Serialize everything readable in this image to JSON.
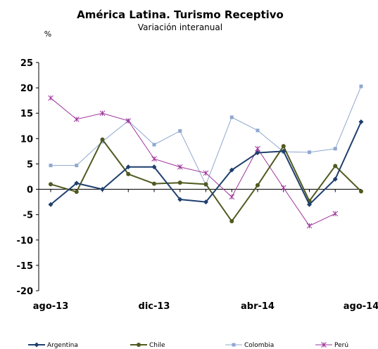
{
  "chart_data": {
    "type": "line",
    "title": "América Latina. Turismo Receptivo",
    "subtitle": "Variación interanual",
    "ylabel": "%",
    "ylim": [
      -20,
      25
    ],
    "yticks": [
      25,
      20,
      15,
      10,
      5,
      0,
      -5,
      -10,
      -15,
      -20
    ],
    "x_count": 13,
    "xtick_labels": [
      {
        "index": 0,
        "label": "ago-13"
      },
      {
        "index": 4,
        "label": "dic-13"
      },
      {
        "index": 8,
        "label": "abr-14"
      },
      {
        "index": 12,
        "label": "ago-14"
      }
    ],
    "grid": false,
    "legend_position": "bottom",
    "series": [
      {
        "name": "Argentina",
        "color": "#1f3f6e",
        "marker": "diamond",
        "values": [
          -3.0,
          1.2,
          0.0,
          4.4,
          4.4,
          -2.0,
          -2.5,
          3.8,
          7.2,
          7.5,
          -3.0,
          2.0,
          13.3
        ]
      },
      {
        "name": "Chile",
        "color": "#4f5a1f",
        "marker": "circle",
        "values": [
          1.0,
          -0.5,
          9.8,
          3.0,
          1.1,
          1.3,
          1.0,
          -6.3,
          0.8,
          8.5,
          -2.3,
          4.6,
          -0.4
        ]
      },
      {
        "name": "Colombia",
        "color": "#8fa8cf",
        "marker": "square",
        "values": [
          4.7,
          4.7,
          9.4,
          13.5,
          8.8,
          11.5,
          0.9,
          14.2,
          11.6,
          7.4,
          7.3,
          8.0,
          20.3
        ]
      },
      {
        "name": "Perú",
        "color": "#a0349c",
        "marker": "asterisk",
        "values": [
          18.0,
          13.8,
          15.0,
          13.5,
          6.0,
          4.4,
          3.2,
          -1.5,
          8.0,
          0.3,
          -7.2,
          -4.8,
          null
        ]
      }
    ]
  }
}
